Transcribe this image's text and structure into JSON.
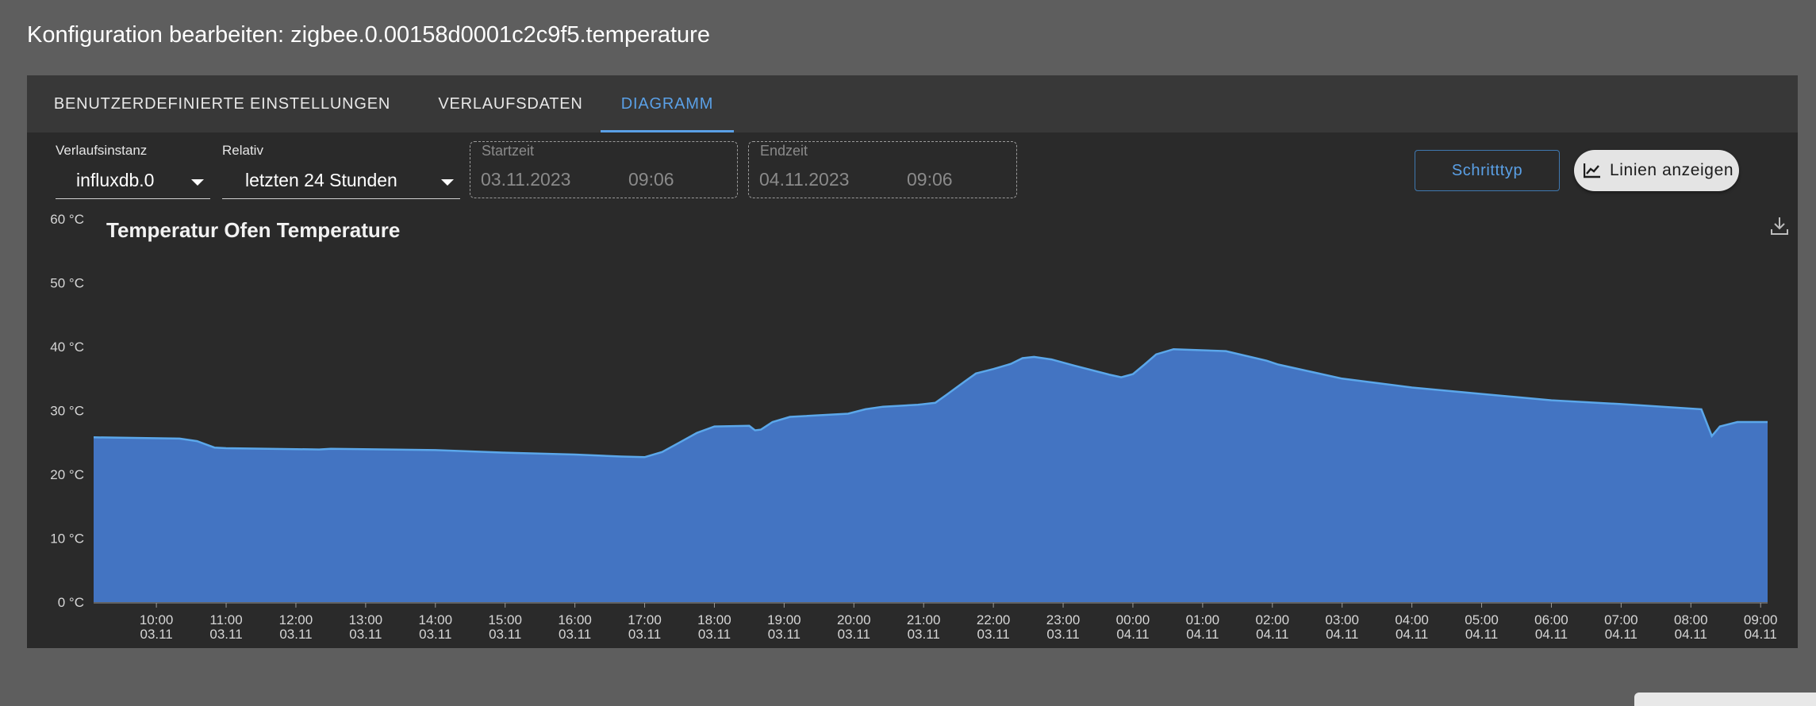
{
  "dialog": {
    "title": "Konfiguration bearbeiten: zigbee.0.00158d0001c2c9f5.temperature"
  },
  "tabs": [
    {
      "label": "Benutzerdefinierte Einstellungen",
      "active": false
    },
    {
      "label": "Verlaufsdaten",
      "active": false
    },
    {
      "label": "Diagramm",
      "active": true
    }
  ],
  "controls": {
    "instance": {
      "label": "Verlaufsinstanz",
      "value": "influxdb.0"
    },
    "relative": {
      "label": "Relativ",
      "value": "letzten 24 Stunden"
    },
    "start": {
      "label": "Startzeit",
      "date": "03.11.2023",
      "time": "09:06"
    },
    "end": {
      "label": "Endzeit",
      "date": "04.11.2023",
      "time": "09:06"
    },
    "step_type_button": "Schritttyp",
    "show_lines_button": "Linien anzeigen"
  },
  "icons": {
    "download": "download-icon",
    "show_lines": "chart-line-icon",
    "dropdown": "chevron-down-icon"
  },
  "colors": {
    "accent": "#5aa0e6",
    "area_fill": "#4374c2",
    "line": "#5ba7ea",
    "panel": "#2a2a2a",
    "background": "#5e5e5e"
  },
  "chart_data": {
    "type": "area",
    "title": "Temperatur Ofen  Temperature",
    "ylim": [
      0,
      60
    ],
    "y_unit": "°C",
    "y_ticks": [
      "0 °C",
      "10 °C",
      "20 °C",
      "30 °C",
      "40 °C",
      "50 °C",
      "60 °C"
    ],
    "x_range": [
      "03.11 09:06",
      "04.11 09:06"
    ],
    "x_ticks": [
      {
        "time": "10:00",
        "date": "03.11"
      },
      {
        "time": "11:00",
        "date": "03.11"
      },
      {
        "time": "12:00",
        "date": "03.11"
      },
      {
        "time": "13:00",
        "date": "03.11"
      },
      {
        "time": "14:00",
        "date": "03.11"
      },
      {
        "time": "15:00",
        "date": "03.11"
      },
      {
        "time": "16:00",
        "date": "03.11"
      },
      {
        "time": "17:00",
        "date": "03.11"
      },
      {
        "time": "18:00",
        "date": "03.11"
      },
      {
        "time": "19:00",
        "date": "03.11"
      },
      {
        "time": "20:00",
        "date": "03.11"
      },
      {
        "time": "21:00",
        "date": "03.11"
      },
      {
        "time": "22:00",
        "date": "03.11"
      },
      {
        "time": "23:00",
        "date": "03.11"
      },
      {
        "time": "00:00",
        "date": "04.11"
      },
      {
        "time": "01:00",
        "date": "04.11"
      },
      {
        "time": "02:00",
        "date": "04.11"
      },
      {
        "time": "03:00",
        "date": "04.11"
      },
      {
        "time": "04:00",
        "date": "04.11"
      },
      {
        "time": "05:00",
        "date": "04.11"
      },
      {
        "time": "06:00",
        "date": "04.11"
      },
      {
        "time": "07:00",
        "date": "04.11"
      },
      {
        "time": "08:00",
        "date": "04.11"
      },
      {
        "time": "09:00",
        "date": "04.11"
      }
    ],
    "series": [
      {
        "x": [
          "03.11 09:06",
          "03.11 10:20",
          "03.11 10:35",
          "03.11 10:50",
          "03.11 11:00",
          "03.11 12:20",
          "03.11 12:30",
          "03.11 14:00",
          "03.11 15:00",
          "03.11 16:00",
          "03.11 16:40",
          "03.11 17:00",
          "03.11 17:15",
          "03.11 17:30",
          "03.11 17:45",
          "03.11 18:00",
          "03.11 18:30",
          "03.11 18:35",
          "03.11 18:40",
          "03.11 18:50",
          "03.11 19:05",
          "03.11 19:55",
          "03.11 20:10",
          "03.11 20:25",
          "03.11 20:55",
          "03.11 21:10",
          "03.11 21:20",
          "03.11 21:35",
          "03.11 21:45",
          "03.11 22:00",
          "03.11 22:15",
          "03.11 22:25",
          "03.11 22:35",
          "03.11 22:50",
          "03.11 23:10",
          "03.11 23:40",
          "03.11 23:50",
          "04.11 00:00",
          "04.11 00:10",
          "04.11 00:20",
          "04.11 00:35",
          "04.11 01:20",
          "04.11 01:55",
          "04.11 02:05",
          "04.11 03:00",
          "04.11 04:00",
          "04.11 05:00",
          "04.11 06:00",
          "04.11 07:00",
          "04.11 08:09",
          "04.11 08:18",
          "04.11 08:25",
          "04.11 08:40",
          "04.11 09:06"
        ],
        "y": [
          25.8,
          25.6,
          25.2,
          24.2,
          24.1,
          23.9,
          24.0,
          23.8,
          23.4,
          23.1,
          22.8,
          22.7,
          23.5,
          25.0,
          26.5,
          27.5,
          27.6,
          26.9,
          27.0,
          28.2,
          29.0,
          29.5,
          30.2,
          30.6,
          30.9,
          31.2,
          32.5,
          34.5,
          35.8,
          36.5,
          37.3,
          38.2,
          38.4,
          38.0,
          37.0,
          35.6,
          35.2,
          35.7,
          37.2,
          38.8,
          39.6,
          39.3,
          37.8,
          37.2,
          35.0,
          33.6,
          32.6,
          31.6,
          31.0,
          30.2,
          26.0,
          27.5,
          28.2,
          28.2
        ]
      }
    ]
  }
}
